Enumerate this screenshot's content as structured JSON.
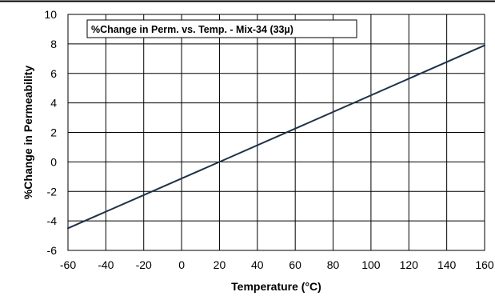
{
  "chart_data": {
    "type": "line",
    "title": "%Change in Perm. vs. Temp. - Mix-34  (33µ)",
    "xlabel": "Temperature (°C)",
    "ylabel": "%Change in Permeability",
    "xlim": [
      -60,
      160
    ],
    "ylim": [
      -6,
      10
    ],
    "xticks": [
      -60,
      -40,
      -20,
      0,
      20,
      40,
      60,
      80,
      100,
      120,
      140,
      160
    ],
    "yticks": [
      -6,
      -4,
      -2,
      0,
      2,
      4,
      6,
      8,
      10
    ],
    "grid": true,
    "legend": "none",
    "series": [
      {
        "x": [
          -60,
          20,
          160
        ],
        "y": [
          -4.5,
          0,
          7.9
        ],
        "color": "#1f3247"
      }
    ]
  }
}
